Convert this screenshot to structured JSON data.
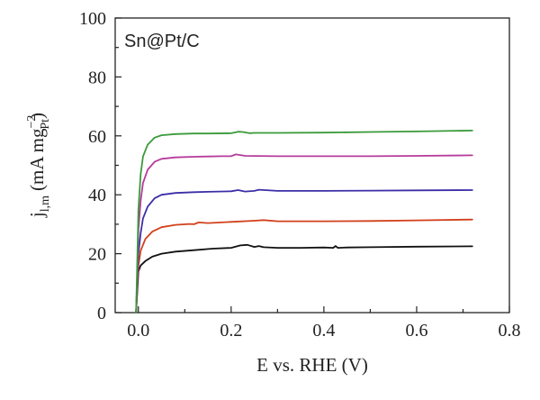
{
  "chart_data": {
    "type": "line",
    "title": "",
    "annotation": "Sn@Pt/C",
    "xlabel": "E vs. RHE (V)",
    "ylabel_parts": {
      "j": "j",
      "j_sub": "l,m",
      "unit_open": "(mA mg",
      "mg_sup": "−2",
      "mg_sub": "Pt",
      "unit_close": ")"
    },
    "xlim": [
      -0.05,
      0.8
    ],
    "ylim": [
      0,
      100
    ],
    "xticks": [
      0.0,
      0.2,
      0.4,
      0.6,
      0.8
    ],
    "xtick_labels": [
      "0.0",
      "0.2",
      "0.4",
      "0.6",
      "0.8"
    ],
    "yticks": [
      0,
      20,
      40,
      60,
      80,
      100
    ],
    "ytick_labels": [
      "0",
      "20",
      "40",
      "60",
      "80",
      "100"
    ],
    "grid": false,
    "legend": "none",
    "series": [
      {
        "color": "#111111",
        "x": [
          -0.005,
          -0.002,
          0.0,
          0.005,
          0.015,
          0.03,
          0.05,
          0.08,
          0.12,
          0.16,
          0.2,
          0.22,
          0.235,
          0.25,
          0.26,
          0.27,
          0.3,
          0.35,
          0.4,
          0.42,
          0.425,
          0.43,
          0.45,
          0.5,
          0.6,
          0.72
        ],
        "y": [
          0,
          8,
          14,
          16,
          17.5,
          19,
          20,
          20.7,
          21.2,
          21.7,
          22,
          22.8,
          23,
          22.3,
          22.6,
          22.2,
          22.0,
          22.0,
          22.1,
          22.0,
          22.6,
          22.0,
          22.1,
          22.2,
          22.4,
          22.5
        ]
      },
      {
        "color": "#d2401c",
        "x": [
          -0.005,
          -0.002,
          0.0,
          0.005,
          0.015,
          0.03,
          0.05,
          0.08,
          0.11,
          0.12,
          0.13,
          0.15,
          0.2,
          0.25,
          0.27,
          0.3,
          0.4,
          0.5,
          0.6,
          0.72
        ],
        "y": [
          0,
          10,
          16,
          21,
          25,
          27.5,
          29,
          29.8,
          30.1,
          30.0,
          30.6,
          30.4,
          30.8,
          31.2,
          31.4,
          31.0,
          31.0,
          31.1,
          31.3,
          31.6
        ]
      },
      {
        "color": "#3b2ea8",
        "x": [
          -0.005,
          -0.002,
          0.0,
          0.005,
          0.01,
          0.02,
          0.035,
          0.05,
          0.08,
          0.12,
          0.15,
          0.2,
          0.215,
          0.23,
          0.25,
          0.26,
          0.3,
          0.4,
          0.5,
          0.6,
          0.72
        ],
        "y": [
          0,
          12,
          20,
          27,
          32,
          36,
          38.8,
          40.0,
          40.6,
          40.9,
          41.0,
          41.2,
          41.6,
          41.1,
          41.3,
          41.7,
          41.3,
          41.3,
          41.4,
          41.5,
          41.6
        ]
      },
      {
        "color": "#b63b9c",
        "x": [
          -0.005,
          -0.002,
          0.0,
          0.005,
          0.01,
          0.02,
          0.035,
          0.05,
          0.08,
          0.12,
          0.15,
          0.18,
          0.2,
          0.21,
          0.22,
          0.23,
          0.3,
          0.4,
          0.5,
          0.6,
          0.72
        ],
        "y": [
          0,
          15,
          28,
          38,
          44,
          48.5,
          51.2,
          52.2,
          52.7,
          52.9,
          53.0,
          53.1,
          53.1,
          53.7,
          53.5,
          53.2,
          53.1,
          53.1,
          53.1,
          53.2,
          53.4
        ]
      },
      {
        "color": "#3a9a3a",
        "x": [
          -0.005,
          -0.002,
          0.0,
          0.005,
          0.01,
          0.02,
          0.035,
          0.05,
          0.08,
          0.12,
          0.15,
          0.2,
          0.215,
          0.225,
          0.24,
          0.25,
          0.3,
          0.4,
          0.5,
          0.6,
          0.72
        ],
        "y": [
          0,
          20,
          35,
          47,
          53,
          57,
          59.4,
          60.2,
          60.6,
          60.8,
          60.8,
          60.9,
          61.4,
          61.3,
          60.9,
          61.0,
          61.0,
          61.1,
          61.3,
          61.5,
          61.8
        ]
      }
    ]
  }
}
